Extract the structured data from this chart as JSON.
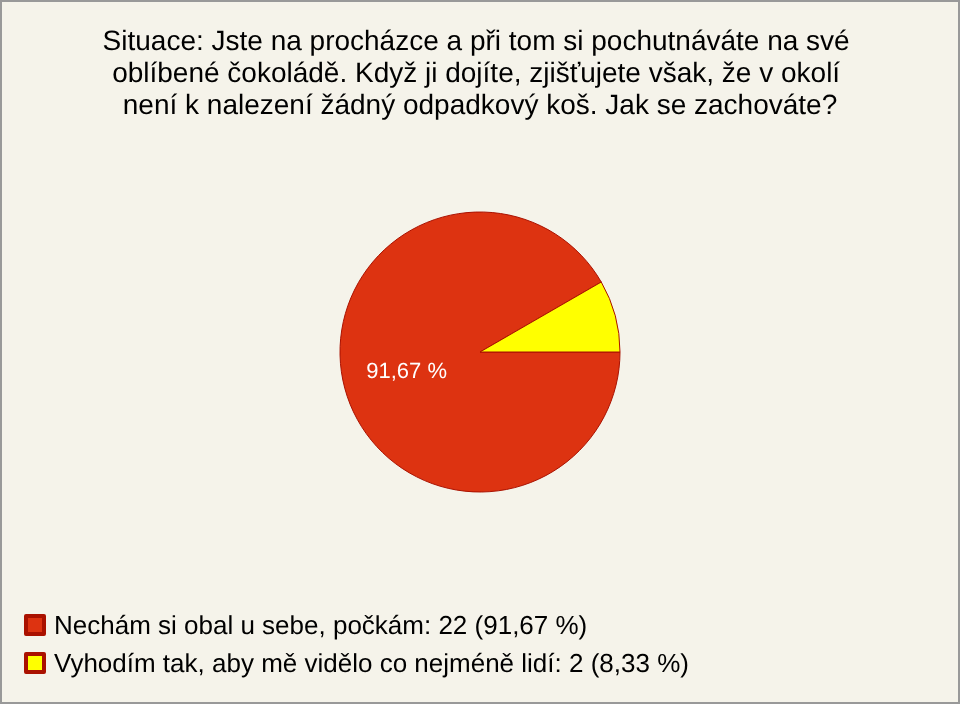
{
  "chart_data": {
    "type": "pie",
    "title": "Situace: Jste na procházce a při tom si pochutnáváte na své oblíbené čokoládě. Když ji dojíte, zjišťujete však, že v okolí není k nalezení žádný odpadkový koš. Jak se zachováte?",
    "categories": [
      "Nechám si obal u sebe, počkám: 22 (91,67 %)",
      "Vyhodím tak, aby mě vidělo co nejméně lidí: 2 (8,33 %)"
    ],
    "values": [
      91.67,
      8.33
    ],
    "colors": [
      "#dd3311",
      "#ffff00"
    ],
    "value_labels": [
      "91,67 %",
      null
    ],
    "legend": "bottom left"
  }
}
